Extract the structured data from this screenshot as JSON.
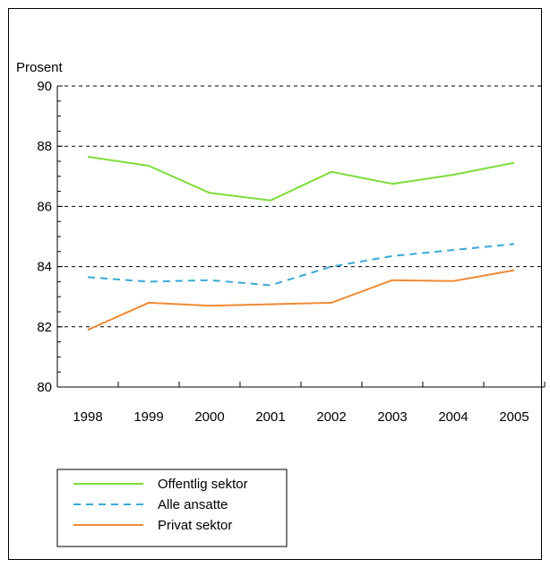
{
  "chart_data": {
    "type": "line",
    "title": "",
    "xlabel": "",
    "ylabel": "Prosent",
    "ylim": [
      80,
      90
    ],
    "yticks": [
      "80",
      "82",
      "84",
      "86",
      "88",
      "90"
    ],
    "categories": [
      "1998",
      "1999",
      "2000",
      "2001",
      "2002",
      "2003",
      "2004",
      "2005"
    ],
    "grid": "horizontal dashed",
    "legend_position": "bottom-left, below plot",
    "series": [
      {
        "name": "Offentlig sektor",
        "color": "#7ddc3a",
        "style": "solid",
        "values": [
          87.65,
          87.35,
          86.45,
          86.2,
          87.15,
          86.75,
          87.05,
          87.45
        ]
      },
      {
        "name": "Alle ansatte",
        "color": "#3aa9d6",
        "style": "dashed",
        "values": [
          83.65,
          83.5,
          83.55,
          83.38,
          84.0,
          84.35,
          84.55,
          84.75
        ]
      },
      {
        "name": "Privat sektor",
        "color": "#ee8a35",
        "style": "solid",
        "values": [
          81.9,
          82.8,
          82.7,
          82.75,
          82.8,
          83.55,
          83.52,
          83.88
        ]
      }
    ]
  }
}
